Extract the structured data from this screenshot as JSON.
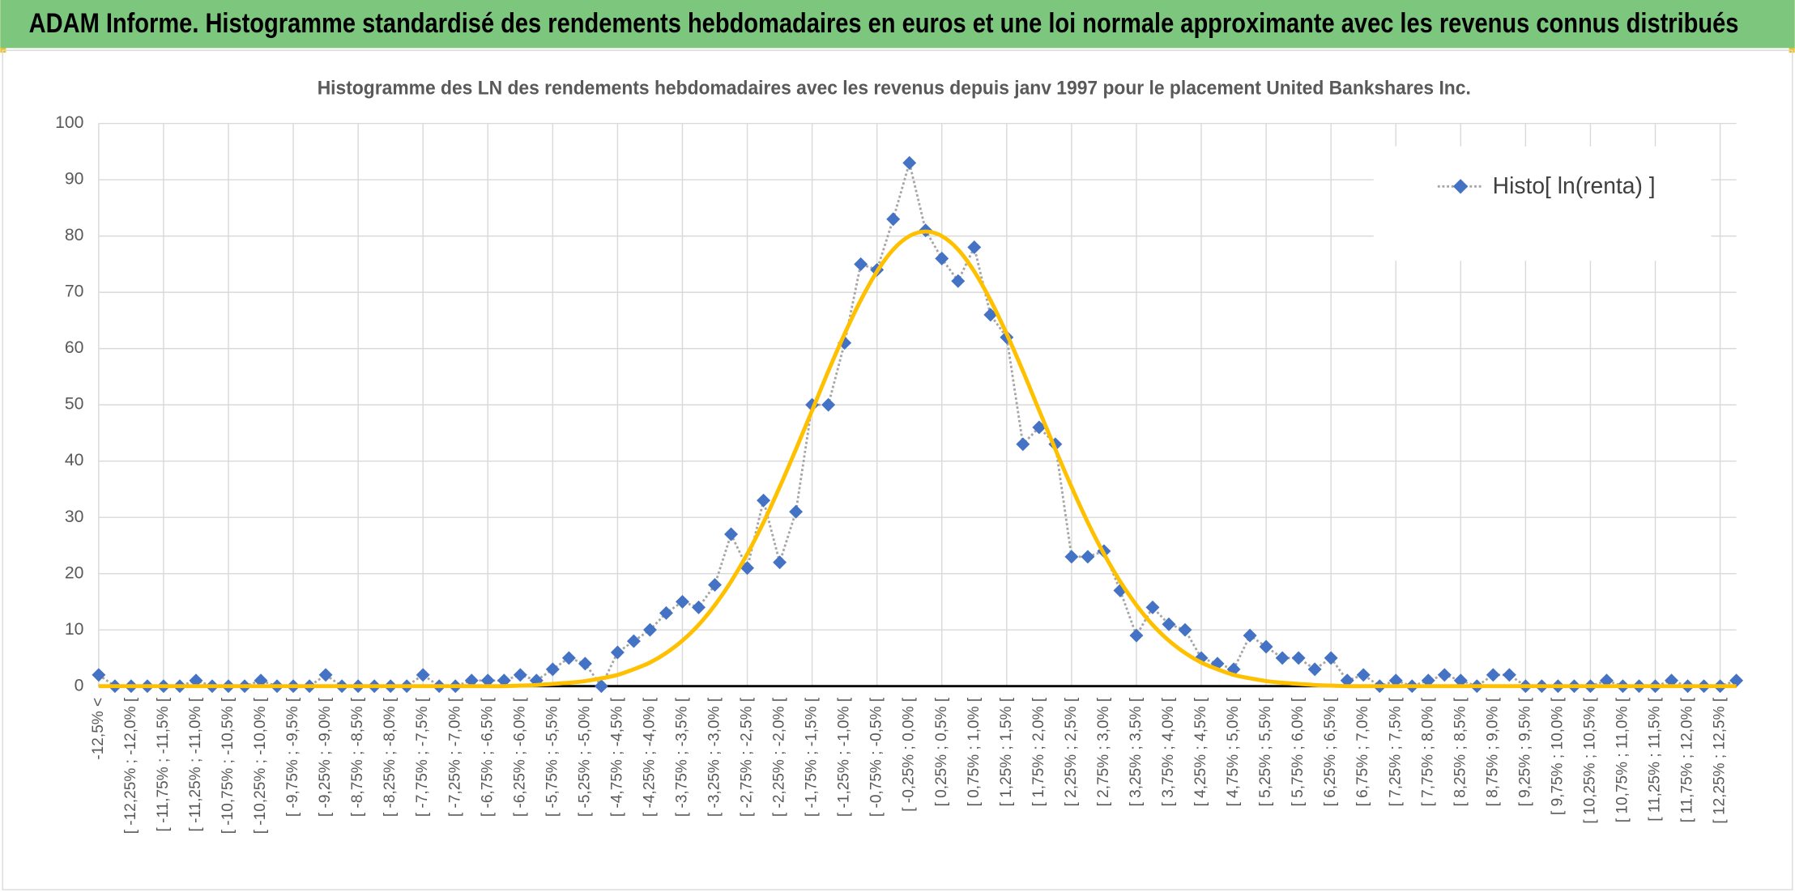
{
  "chart_data": {
    "type": "line",
    "header": "ADAM Informe. Histogramme standardisé des rendements hebdomadaires en euros et une loi normale approximante avec les revenus connus distribués",
    "title": "Histogramme des LN des rendements hebdomadaires avec les revenus depuis janv 1997 pour le placement United Bankshares Inc.",
    "categories": [
      "-12,5% <",
      null,
      "[ -12,25% ; -12,0% [",
      null,
      "[ -11,75% ; -11,5% [",
      null,
      "[ -11,25% ; -11,0% [",
      null,
      "[ -10,75% ; -10,5% [",
      null,
      "[ -10,25% ; -10,0% [",
      null,
      "[ -9,75% ; -9,5% [",
      null,
      "[ -9,25% ; -9,0% [",
      null,
      "[ -8,75% ; -8,5% [",
      null,
      "[ -8,25% ; -8,0% [",
      null,
      "[ -7,75% ; -7,5% [",
      null,
      "[ -7,25% ; -7,0% [",
      null,
      "[ -6,75% ; -6,5% [",
      null,
      "[ -6,25% ; -6,0% [",
      null,
      "[ -5,75% ; -5,5% [",
      null,
      "[ -5,25% ; -5,0% [",
      null,
      "[ -4,75% ; -4,5% [",
      null,
      "[ -4,25% ; -4,0% [",
      null,
      "[ -3,75% ; -3,5% [",
      null,
      "[ -3,25% ; -3,0% [",
      null,
      "[ -2,75% ; -2,5% [",
      null,
      "[ -2,25% ; -2,0% [",
      null,
      "[ -1,75% ; -1,5% [",
      null,
      "[ -1,25% ; -1,0% [",
      null,
      "[ -0,75% ; -0,5% [",
      null,
      "[ -0,25% ; 0,0% [",
      null,
      "[ 0,25% ; 0,5% [",
      null,
      "[ 0,75% ; 1,0% [",
      null,
      "[ 1,25% ; 1,5% [",
      null,
      "[ 1,75% ; 2,0% [",
      null,
      "[ 2,25% ; 2,5% [",
      null,
      "[ 2,75% ; 3,0% [",
      null,
      "[ 3,25% ; 3,5% [",
      null,
      "[ 3,75% ; 4,0% [",
      null,
      "[ 4,25% ; 4,5% [",
      null,
      "[ 4,75% ; 5,0% [",
      null,
      "[ 5,25% ; 5,5% [",
      null,
      "[ 5,75% ; 6,0% [",
      null,
      "[ 6,25% ; 6,5% [",
      null,
      "[ 6,75% ; 7,0% [",
      null,
      "[ 7,25% ; 7,5% [",
      null,
      "[ 7,75% ; 8,0% [",
      null,
      "[ 8,25% ; 8,5% [",
      null,
      "[ 8,75% ; 9,0% [",
      null,
      "[ 9,25% ; 9,5% [",
      null,
      "[ 9,75% ; 10,0% [",
      null,
      "[ 10,25% ; 10,5% [",
      null,
      "[ 10,75% ; 11,0% [",
      null,
      "[ 11,25% ; 11,5% [",
      null,
      "[ 11,75% ; 12,0% [",
      null,
      "[ 12,25% ; 12,5% [",
      null
    ],
    "series": [
      {
        "name": "Histo[ ln(renta) ]",
        "color": "#4472c4",
        "line_color": "#a5a5a5",
        "marker": "diamond",
        "values": [
          2,
          0,
          0,
          0,
          0,
          0,
          1,
          0,
          0,
          0,
          1,
          0,
          0,
          0,
          2,
          0,
          0,
          0,
          0,
          0,
          2,
          0,
          0,
          1,
          1,
          1,
          2,
          1,
          3,
          5,
          4,
          0,
          6,
          8,
          10,
          13,
          15,
          14,
          18,
          27,
          21,
          33,
          22,
          31,
          50,
          50,
          61,
          75,
          74,
          83,
          93,
          81,
          76,
          72,
          78,
          66,
          62,
          43,
          46,
          43,
          23,
          23,
          24,
          17,
          9,
          14,
          11,
          10,
          5,
          4,
          3,
          9,
          7,
          5,
          5,
          3,
          5,
          1,
          2,
          0,
          1,
          0,
          1,
          2,
          1,
          0,
          2,
          2,
          0,
          0,
          0,
          0,
          0,
          1,
          0,
          0,
          0,
          1,
          0,
          0,
          0,
          1
        ]
      },
      {
        "color": "#ffc000",
        "smooth": true,
        "values": [
          0,
          0,
          0,
          0,
          0,
          0,
          0,
          0,
          0,
          0,
          0,
          0,
          0,
          0,
          0,
          0,
          0,
          0,
          0,
          0,
          0,
          0,
          0,
          0,
          0,
          0,
          0.1,
          0.2,
          0.4,
          0.6,
          0.9,
          1.4,
          2.0,
          3.0,
          4.2,
          5.9,
          8.1,
          10.9,
          14.4,
          18.6,
          23.5,
          29.1,
          35.4,
          42.1,
          49.0,
          56.0,
          62.6,
          68.6,
          73.7,
          77.6,
          80.0,
          80.8,
          80.0,
          77.6,
          73.7,
          68.6,
          62.6,
          56.0,
          49.0,
          42.1,
          35.4,
          29.1,
          23.5,
          18.6,
          14.4,
          10.9,
          8.1,
          5.9,
          4.2,
          3.0,
          2.0,
          1.4,
          0.9,
          0.6,
          0.4,
          0.2,
          0.1,
          0,
          0,
          0,
          0,
          0,
          0,
          0,
          0,
          0,
          0,
          0,
          0,
          0,
          0,
          0,
          0,
          0,
          0,
          0,
          0,
          0,
          0,
          0,
          0,
          0
        ]
      }
    ],
    "ylim": [
      0,
      100
    ],
    "yticks": [
      0,
      10,
      20,
      30,
      40,
      50,
      60,
      70,
      80,
      90,
      100
    ],
    "grid": true,
    "legend": "top-right"
  }
}
